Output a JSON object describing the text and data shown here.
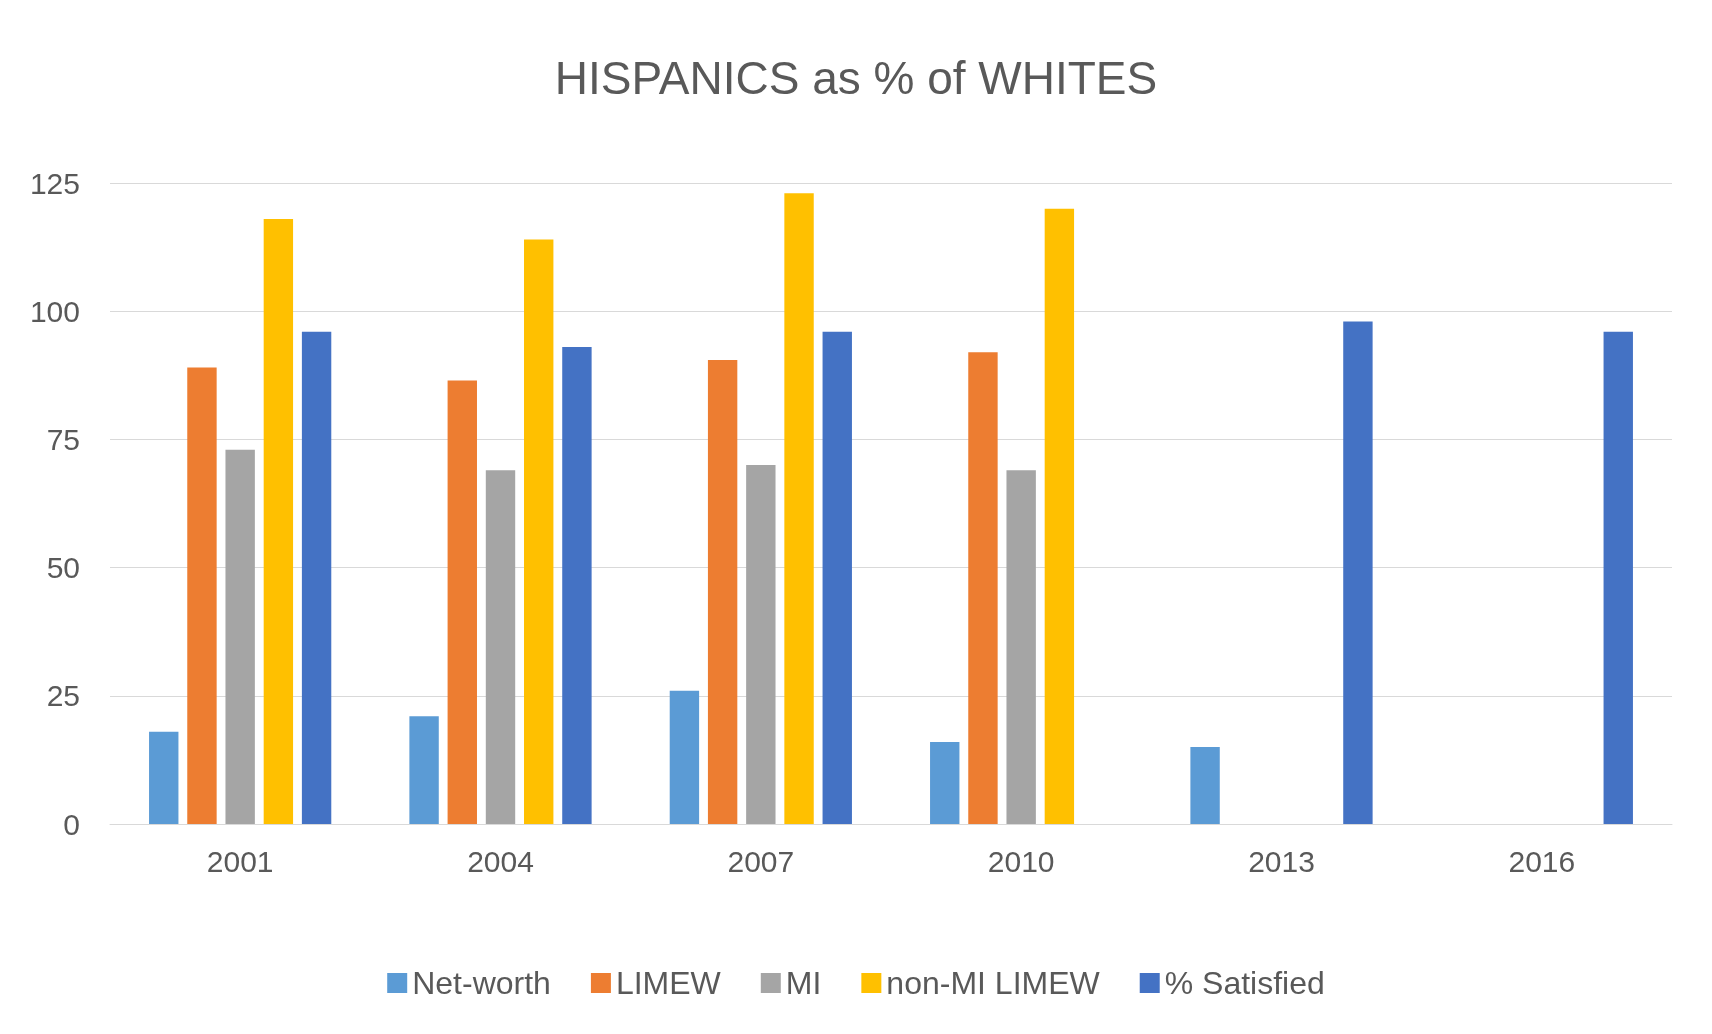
{
  "chart_data": {
    "type": "bar",
    "title": "HISPANICS as % of WHITES",
    "categories": [
      "2001",
      "2004",
      "2007",
      "2010",
      "2013",
      "2016"
    ],
    "series": [
      {
        "name": "Net-worth",
        "color": "#5b9bd5",
        "values": [
          18,
          21,
          26,
          16,
          15,
          null
        ]
      },
      {
        "name": "LIMEW",
        "color": "#ed7d31",
        "values": [
          89,
          86.5,
          90.5,
          92,
          null,
          null
        ]
      },
      {
        "name": "MI",
        "color": "#a5a5a5",
        "values": [
          73,
          69,
          70,
          69,
          null,
          null
        ]
      },
      {
        "name": "non-MI LIMEW",
        "color": "#ffc000",
        "values": [
          118,
          114,
          123,
          120,
          null,
          null
        ]
      },
      {
        "name": "% Satisfied",
        "color": "#4472c4",
        "values": [
          96,
          93,
          96,
          null,
          98,
          96
        ]
      }
    ],
    "ylim": [
      0,
      125
    ],
    "yticks": [
      0,
      25,
      50,
      75,
      100,
      125
    ],
    "grid": "y",
    "legend": "bottom"
  }
}
